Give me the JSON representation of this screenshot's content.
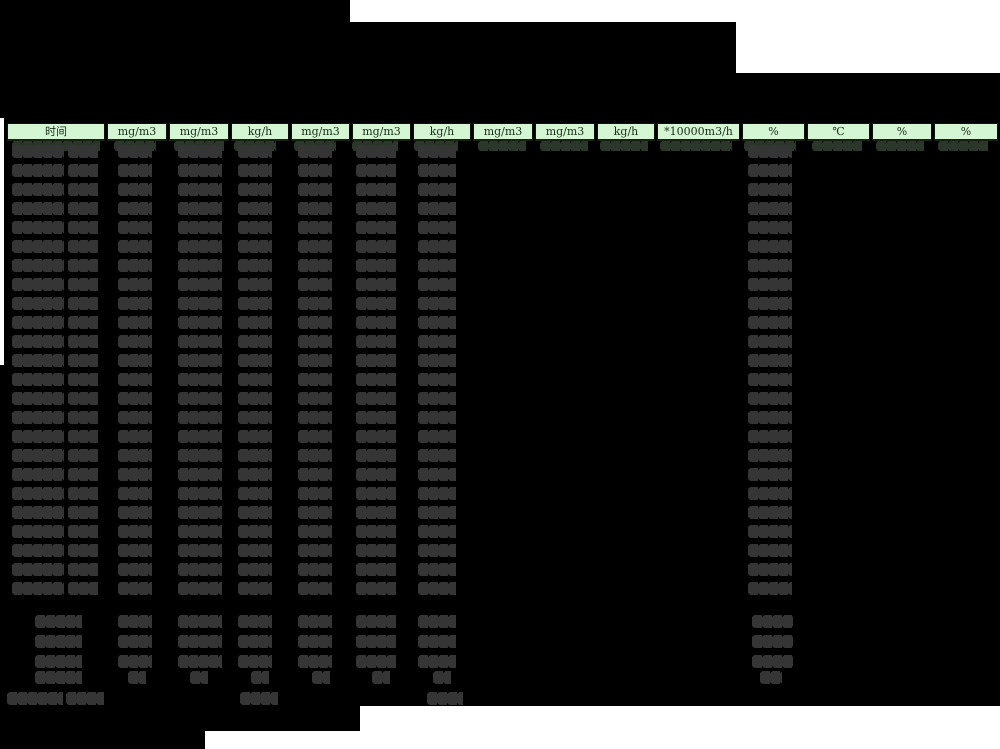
{
  "report_table": {
    "unit_headers": [
      "时间",
      "mg/m3",
      "mg/m3",
      "kg/h",
      "mg/m3",
      "mg/m3",
      "kg/h",
      "mg/m3",
      "mg/m3",
      "kg/h",
      "*10000m3/h",
      "%",
      "℃",
      "%",
      "%"
    ],
    "visible_data_row_count": 24,
    "visible_summary_row_count": 4,
    "visible_footer_row_count": 1,
    "data_values_state": "illegible dark smudged blobs (redacted) on black background"
  },
  "colors": {
    "background": "#000000",
    "header_bg": "#d4f6d2",
    "header_text": "#1b2e1b",
    "redaction_blob": "#353535",
    "redaction_blob_under_header": "#2c372c",
    "page_white": "#ffffff"
  }
}
